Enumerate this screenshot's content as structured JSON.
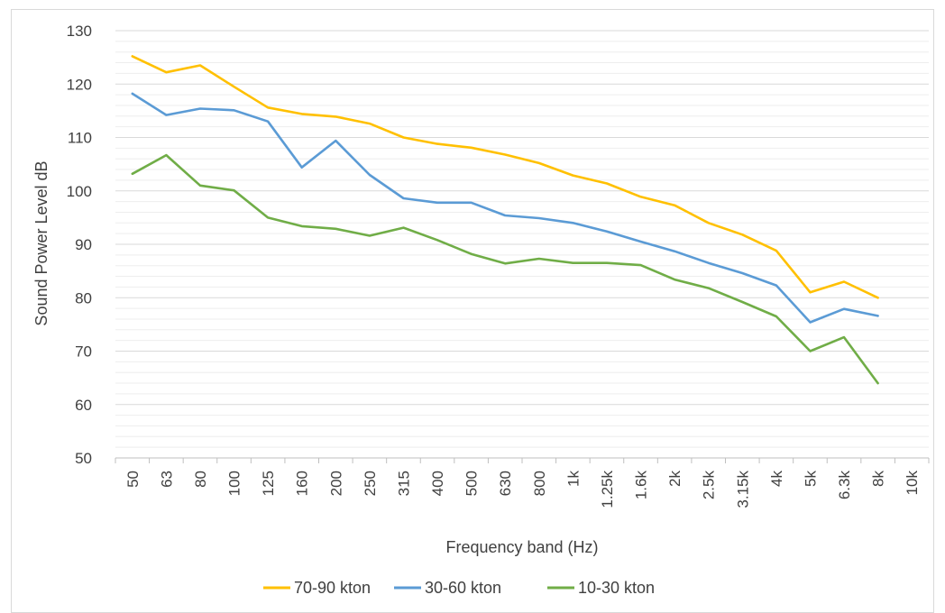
{
  "chart_data": {
    "type": "line",
    "title": "",
    "xlabel": "Frequency band (Hz)",
    "ylabel": "Sound Power Level dB",
    "ylim": [
      50,
      130
    ],
    "yticks": [
      50,
      60,
      70,
      80,
      90,
      100,
      110,
      120,
      130
    ],
    "grid": "horizontal major and minor",
    "legend_position": "bottom",
    "categories": [
      "50",
      "63",
      "80",
      "100",
      "125",
      "160",
      "200",
      "250",
      "315",
      "400",
      "500",
      "630",
      "800",
      "1k",
      "1.25k",
      "1.6k",
      "2k",
      "2.5k",
      "3.15k",
      "4k",
      "5k",
      "6.3k",
      "8k",
      "10k"
    ],
    "series": [
      {
        "name": "70-90 kton",
        "color": "#ffc000",
        "values": [
          125.2,
          122.2,
          123.5,
          119.5,
          115.6,
          114.4,
          113.9,
          112.6,
          110.0,
          108.8,
          108.1,
          106.8,
          105.2,
          102.9,
          101.4,
          98.9,
          97.3,
          94.0,
          91.8,
          88.8,
          81.0,
          83.0,
          80.0,
          null
        ]
      },
      {
        "name": "30-60 kton",
        "color": "#5b9bd5",
        "values": [
          118.2,
          114.2,
          115.4,
          115.1,
          113.0,
          104.4,
          109.4,
          103.0,
          98.6,
          97.8,
          97.8,
          95.4,
          94.9,
          94.0,
          92.4,
          90.5,
          88.7,
          86.5,
          84.6,
          82.3,
          75.4,
          77.9,
          76.6,
          null
        ]
      },
      {
        "name": "10-30 kton",
        "color": "#70ad47",
        "values": [
          103.2,
          106.7,
          101.0,
          100.1,
          95.0,
          93.4,
          92.9,
          91.6,
          93.1,
          90.8,
          88.2,
          86.4,
          87.3,
          86.5,
          86.5,
          86.1,
          83.4,
          81.8,
          79.2,
          76.5,
          70.0,
          72.6,
          64.0,
          null
        ]
      }
    ]
  },
  "colors": {
    "grid": "#d9d9d9",
    "axis": "#bfbfbf",
    "text": "#404040"
  }
}
